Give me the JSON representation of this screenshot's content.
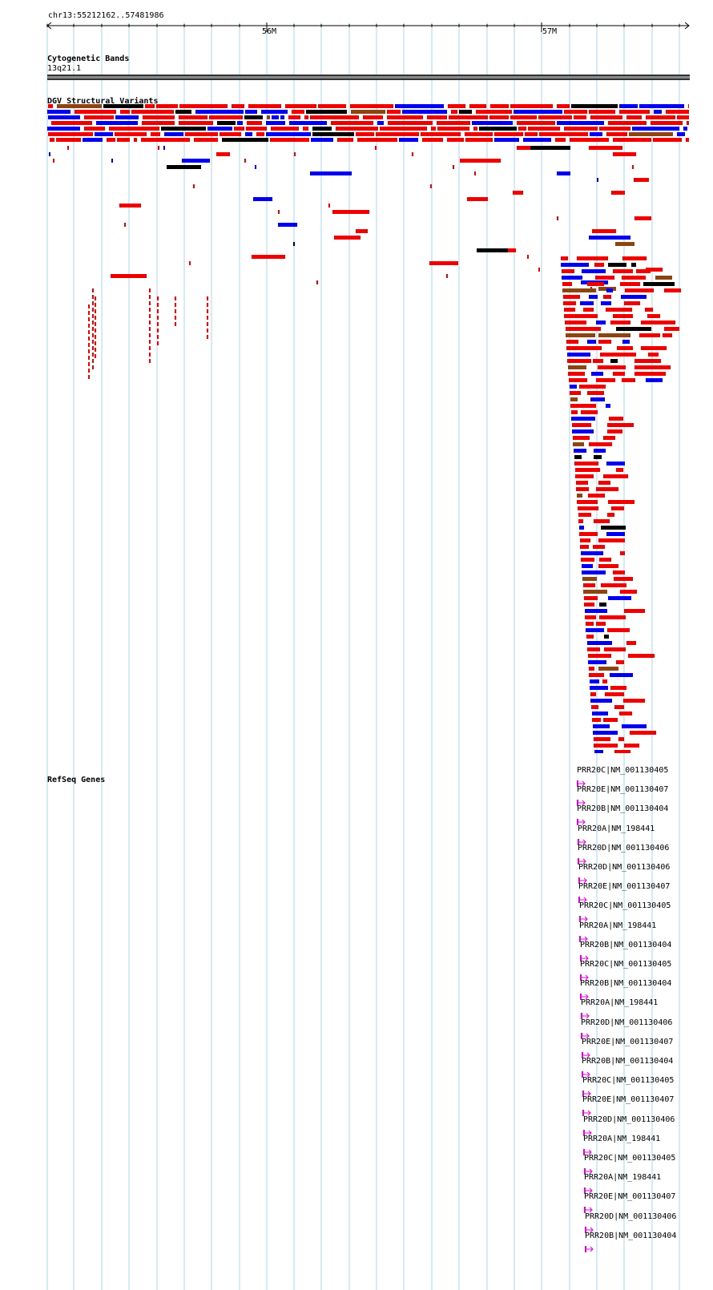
{
  "ruler": {
    "range_label": "chr13:55212162..57481986",
    "ticks": [
      {
        "label": "56M"
      },
      {
        "label": "57M"
      }
    ]
  },
  "cytoband": {
    "track_title": "Cytogenetic Bands",
    "band_label": "13q21.1"
  },
  "dgv": {
    "track_title": "DGV Structural Variants",
    "colors": {
      "loss": "#ee0000",
      "gain": "#0000ee",
      "both": "#8b4513",
      "other": "#000000"
    }
  },
  "refseq": {
    "track_title": "RefSeq Genes",
    "glyph_color": "#e000e0",
    "genes": [
      "PRR20C|NM_001130405",
      "PRR20E|NM_001130407",
      "PRR20B|NM_001130404",
      "PRR20A|NM_198441",
      "PRR20D|NM_001130406",
      "PRR20D|NM_001130406",
      "PRR20E|NM_001130407",
      "PRR20C|NM_001130405",
      "PRR20A|NM_198441",
      "PRR20B|NM_001130404",
      "PRR20C|NM_001130405",
      "PRR20B|NM_001130404",
      "PRR20A|NM_198441",
      "PRR20D|NM_001130406",
      "PRR20E|NM_001130407",
      "PRR20B|NM_001130404",
      "PRR20C|NM_001130405",
      "PRR20E|NM_001130407",
      "PRR20D|NM_001130406",
      "PRR20A|NM_198441",
      "PRR20C|NM_001130405",
      "PRR20A|NM_198441",
      "PRR20E|NM_001130407",
      "PRR20D|NM_001130406",
      "PRR20B|NM_001130404"
    ]
  }
}
